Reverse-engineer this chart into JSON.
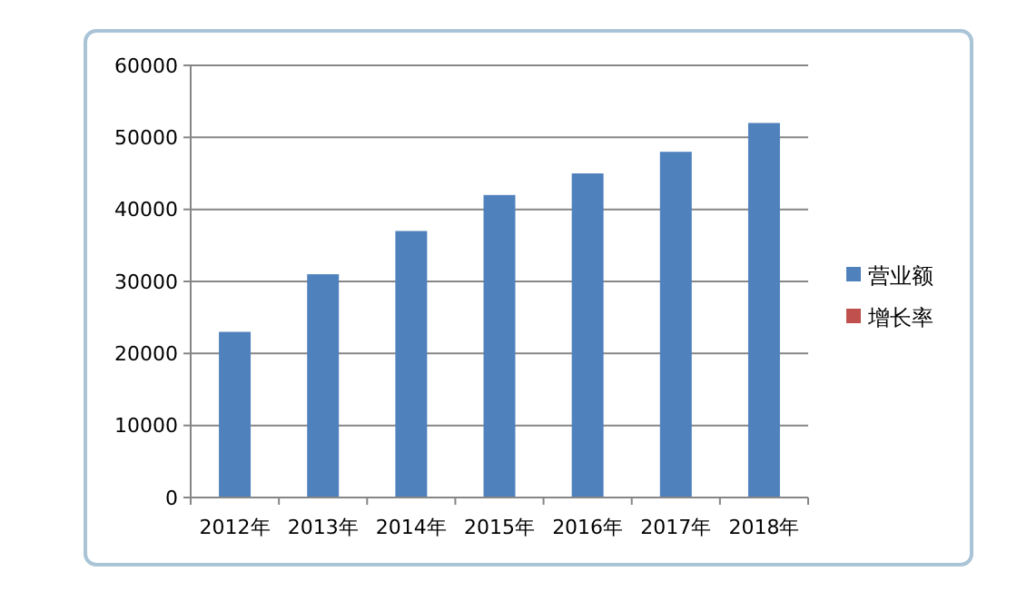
{
  "chart_data": {
    "type": "bar",
    "categories": [
      "2012年",
      "2013年",
      "2014年",
      "2015年",
      "2016年",
      "2017年",
      "2018年"
    ],
    "series": [
      {
        "name": "营业额",
        "color": "#4f81bd",
        "values": [
          23000,
          31000,
          37000,
          42000,
          45000,
          48000,
          52000
        ]
      },
      {
        "name": "增长率",
        "color": "#c0504d",
        "values": [
          null,
          null,
          null,
          null,
          null,
          null,
          null
        ]
      }
    ],
    "ylim": [
      0,
      60000
    ],
    "yticks": [
      0,
      10000,
      20000,
      30000,
      40000,
      50000,
      60000
    ],
    "grid": "y",
    "legend": "right"
  }
}
